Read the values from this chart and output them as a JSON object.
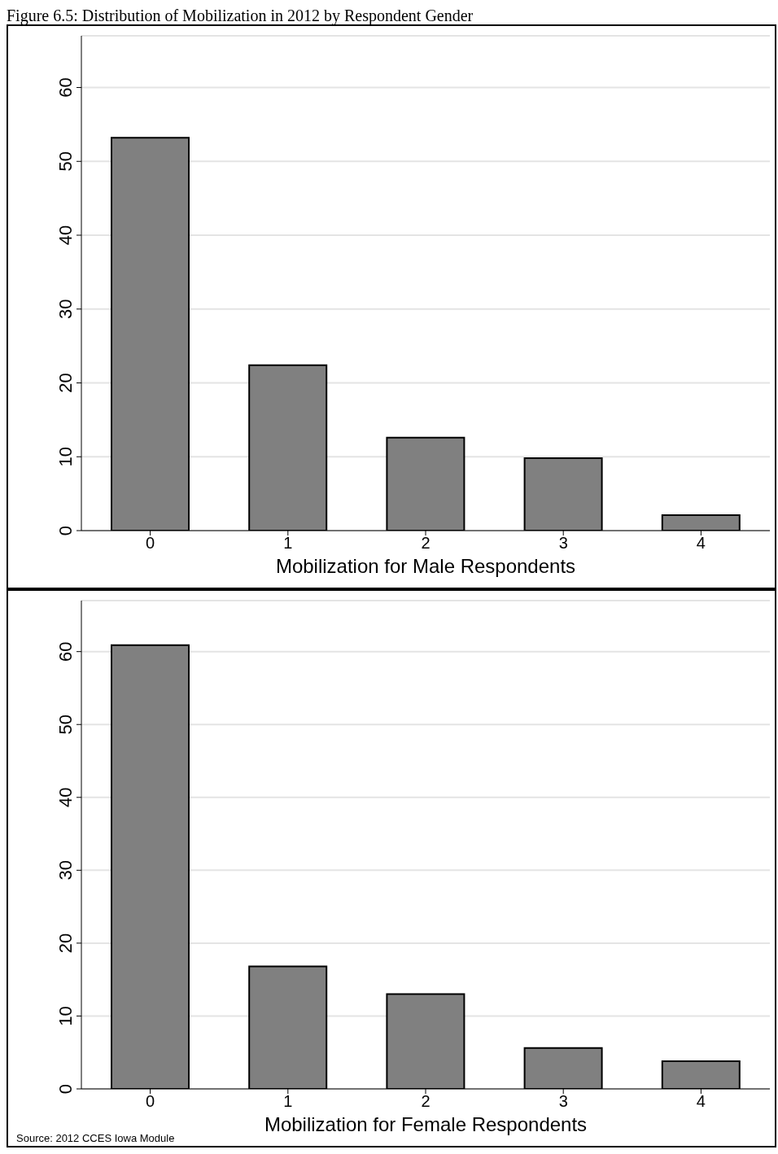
{
  "chart_data": [
    {
      "type": "bar",
      "title": "Figure 6.5: Distribution of Mobilization in 2012 by Respondent Gender",
      "xlabel": "Mobilization for Male Respondents",
      "categories": [
        "0",
        "1",
        "2",
        "3",
        "4"
      ],
      "values": [
        53.2,
        22.4,
        12.6,
        9.8,
        2.1
      ],
      "color": "#808080",
      "ylim": [
        0,
        67
      ],
      "yticks": [
        0,
        10,
        20,
        30,
        40,
        50,
        60
      ],
      "grid": "y"
    },
    {
      "type": "bar",
      "xlabel": "Mobilization for Female Respondents",
      "categories": [
        "0",
        "1",
        "2",
        "3",
        "4"
      ],
      "values": [
        60.9,
        16.8,
        13.0,
        5.6,
        3.8
      ],
      "color": "#808080",
      "ylim": [
        0,
        67
      ],
      "yticks": [
        0,
        10,
        20,
        30,
        40,
        50,
        60
      ],
      "grid": "y",
      "annotations": [
        "Source: 2012 CCES Iowa Module"
      ]
    }
  ]
}
